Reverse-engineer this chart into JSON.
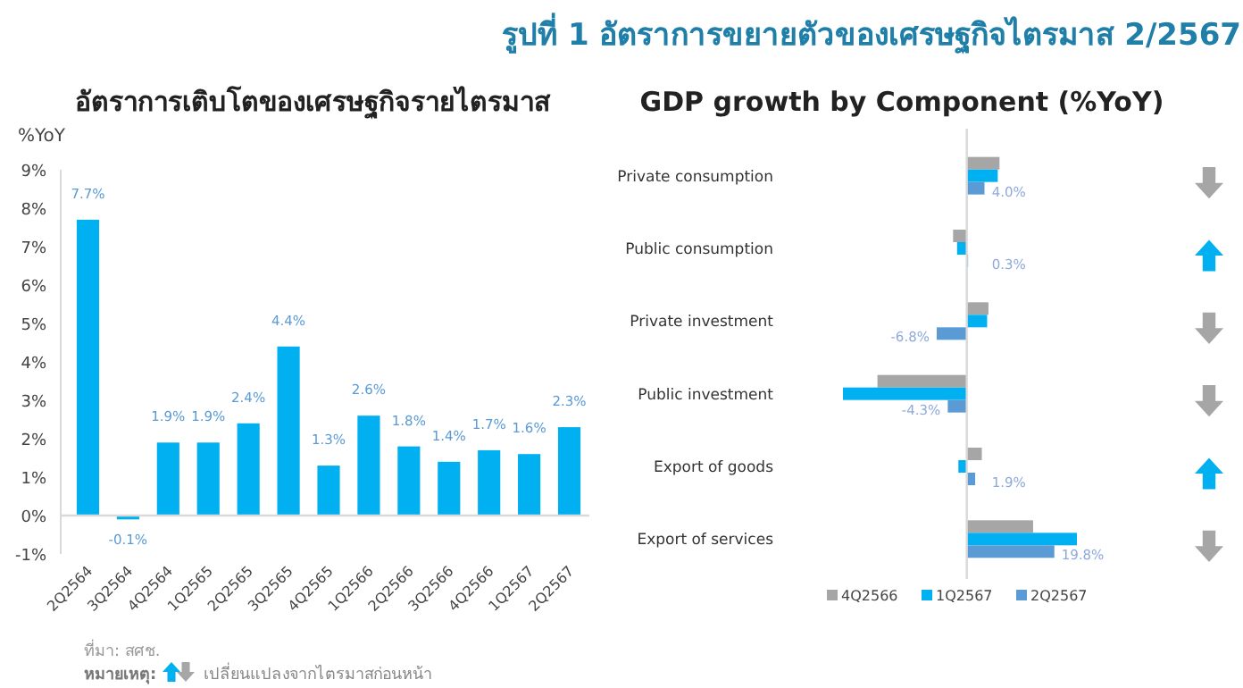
{
  "chart_data": [
    {
      "type": "bar",
      "title": "อัตราการเติบโตของเศรษฐกิจรายไตรมาส",
      "ylabel": "%YoY",
      "categories": [
        "2Q2564",
        "3Q2564",
        "4Q2564",
        "1Q2565",
        "2Q2565",
        "3Q2565",
        "4Q2565",
        "1Q2566",
        "2Q2566",
        "3Q2566",
        "4Q2566",
        "1Q2567",
        "2Q2567"
      ],
      "values": [
        7.7,
        -0.1,
        1.9,
        1.9,
        2.4,
        4.4,
        1.3,
        2.6,
        1.8,
        1.4,
        1.7,
        1.6,
        2.3
      ],
      "value_labels": [
        "7.7%",
        "-0.1%",
        "1.9%",
        "1.9%",
        "2.4%",
        "4.4%",
        "1.3%",
        "2.6%",
        "1.8%",
        "1.4%",
        "1.7%",
        "1.6%",
        "2.3%"
      ],
      "color": "#00b0f0",
      "ylim": [
        -1,
        9
      ],
      "yticks": [
        {
          "value": -1,
          "label": "-1%"
        },
        {
          "value": 0,
          "label": "0%"
        },
        {
          "value": 1,
          "label": "1%"
        },
        {
          "value": 2,
          "label": "2%"
        },
        {
          "value": 3,
          "label": "3%"
        },
        {
          "value": 4,
          "label": "4%"
        },
        {
          "value": 5,
          "label": "5%"
        },
        {
          "value": 6,
          "label": "6%"
        },
        {
          "value": 7,
          "label": "7%"
        },
        {
          "value": 8,
          "label": "8%"
        },
        {
          "value": 9,
          "label": "9%"
        }
      ],
      "annotations": [
        "รูปที่ 1 อัตราการขยายตัวของเศรษฐกิจไตรมาส 2/2567",
        "ที่มา: สศช.",
        "หมายเหตุ:",
        "เปลี่ยนแปลงจากไตรมาสก่อนหน้า"
      ]
    },
    {
      "type": "bar",
      "orientation": "horizontal",
      "title": "GDP growth by Component  (%YoY)",
      "categories": [
        "Private consumption",
        "Public consumption",
        "Private investment",
        "Public investment",
        "Export of goods",
        "Export of services"
      ],
      "series": [
        {
          "name": "4Q2566",
          "color": "#a6a6a6",
          "values": [
            7.4,
            -3.1,
            4.9,
            -20.2,
            3.4,
            15.0
          ]
        },
        {
          "name": "1Q2567",
          "color": "#00b0f0",
          "values": [
            7.0,
            -2.2,
            4.6,
            -28.0,
            -1.9,
            24.9
          ]
        },
        {
          "name": "2Q2567",
          "color": "#5b9bd5",
          "values": [
            4.0,
            0.3,
            -6.8,
            -4.3,
            1.9,
            19.8
          ],
          "value_labels": [
            "4.0%",
            "0.3%",
            "-6.8%",
            "-4.3%",
            "1.9%",
            "19.8%"
          ]
        }
      ],
      "legend": "bottom"
    }
  ]
}
